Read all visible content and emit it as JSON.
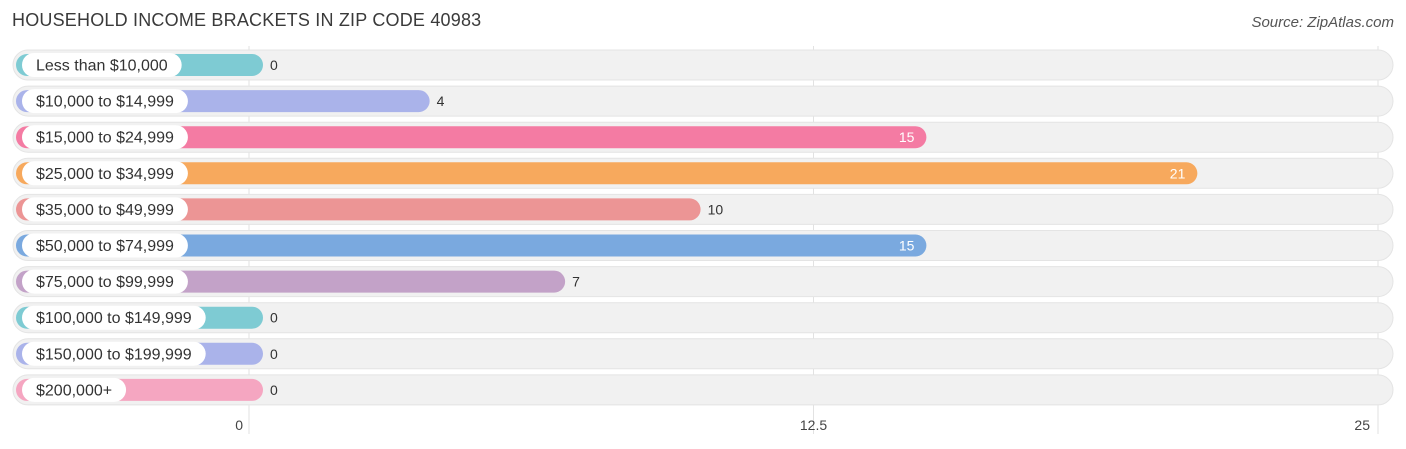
{
  "title": "HOUSEHOLD INCOME BRACKETS IN ZIP CODE 40983",
  "source": "Source: ZipAtlas.com",
  "chart_data": {
    "type": "bar",
    "orientation": "horizontal",
    "categories": [
      "Less than $10,000",
      "$10,000 to $14,999",
      "$15,000 to $24,999",
      "$25,000 to $34,999",
      "$35,000 to $49,999",
      "$50,000 to $74,999",
      "$75,000 to $99,999",
      "$100,000 to $149,999",
      "$150,000 to $199,999",
      "$200,000+"
    ],
    "values": [
      0,
      4,
      15,
      21,
      10,
      15,
      7,
      0,
      0,
      0
    ],
    "value_labels": [
      "0",
      "4",
      "15",
      "21",
      "10",
      "15",
      "7",
      "0",
      "0",
      "0"
    ],
    "colors": [
      "#7ecbd3",
      "#aab3ea",
      "#f47ba3",
      "#f7a95d",
      "#ec9595",
      "#7aa9df",
      "#c3a2c8",
      "#7ecbd3",
      "#aab3ea",
      "#f5a6c1"
    ],
    "xlim": [
      0,
      25
    ],
    "x_ticks": [
      0,
      12.5,
      25
    ],
    "x_tick_labels": [
      "0",
      "12.5",
      "25"
    ],
    "grid": true
  }
}
